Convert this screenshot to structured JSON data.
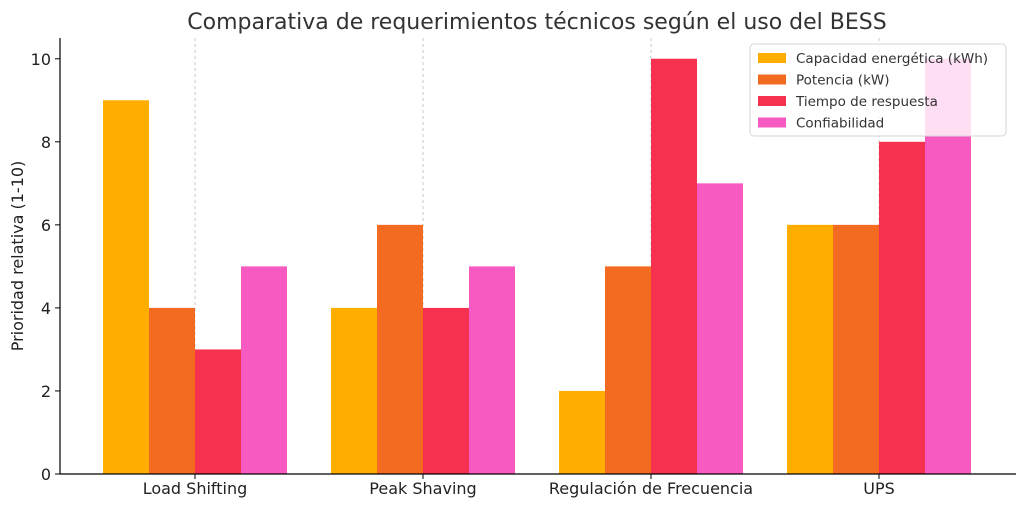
{
  "chart_data": {
    "type": "bar",
    "title": "Comparativa de requerimientos técnicos según el uso del BESS",
    "xlabel": "",
    "ylabel": "Prioridad relativa (1-10)",
    "categories": [
      "Load Shifting",
      "Peak Shaving",
      "Regulación de Frecuencia",
      "UPS"
    ],
    "series": [
      {
        "name": "Capacidad energética (kWh)",
        "color": "#FFAE00",
        "values": [
          9,
          4,
          2,
          6
        ]
      },
      {
        "name": "Potencia (kW)",
        "color": "#F26B21",
        "values": [
          4,
          6,
          5,
          6
        ]
      },
      {
        "name": "Tiempo de respuesta",
        "color": "#F5314F",
        "values": [
          3,
          4,
          10,
          8
        ]
      },
      {
        "name": "Confiabilidad",
        "color": "#F75BC1",
        "values": [
          5,
          5,
          7,
          10
        ]
      }
    ],
    "ylim": [
      0,
      10.5
    ],
    "yticks": [
      "0",
      "2",
      "4",
      "6",
      "8",
      "10"
    ],
    "grid": "x-dashed",
    "legend": "top-right"
  }
}
